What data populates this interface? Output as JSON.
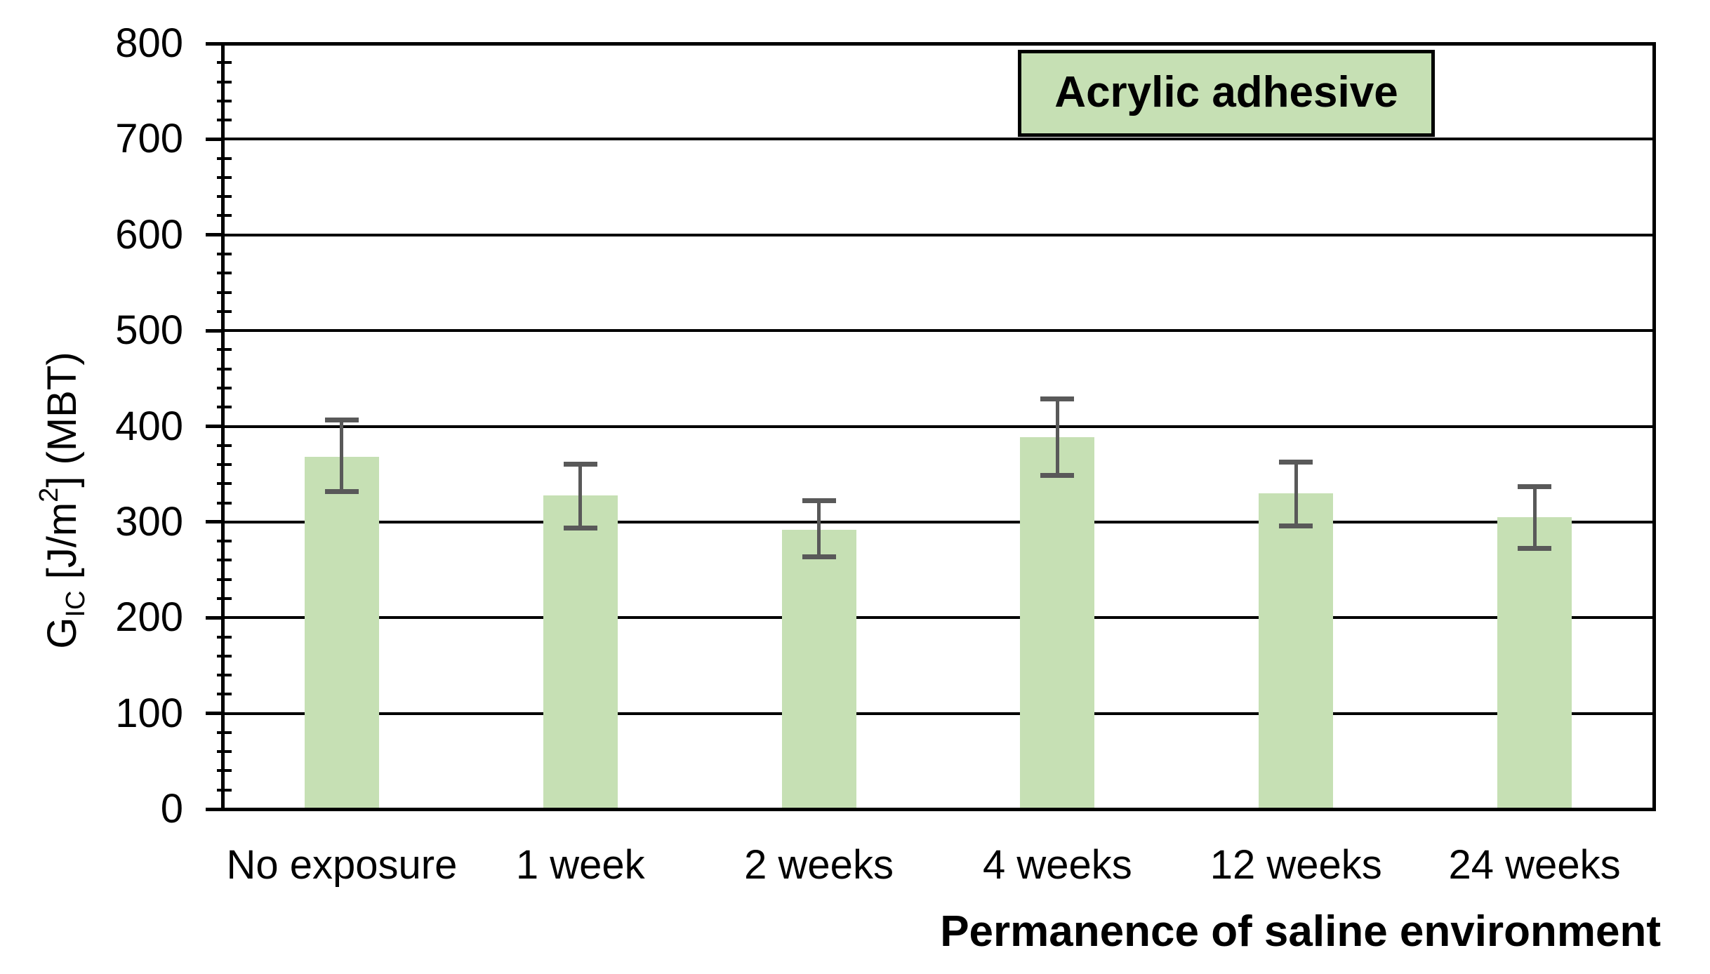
{
  "chart_data": {
    "type": "bar",
    "legend_label": "Acrylic adhesive",
    "legend_position": "top-right-inside",
    "xlabel": "Permanence of saline environment",
    "ylabel": {
      "main": "G",
      "subscript": "IC",
      "unit_prefix": " [J/m",
      "superscript": "2",
      "unit_suffix": "] (MBT)"
    },
    "categories": [
      "No exposure",
      "1 week",
      "2 weeks",
      "4 weeks",
      "12 weeks",
      "24 weeks"
    ],
    "values": [
      368,
      328,
      292,
      389,
      330,
      305
    ],
    "error_upper": [
      407,
      361,
      323,
      429,
      363,
      337
    ],
    "error_lower": [
      332,
      294,
      264,
      349,
      296,
      273
    ],
    "ylim": [
      0,
      800
    ],
    "yticks": [
      0,
      100,
      200,
      300,
      400,
      500,
      600,
      700,
      800
    ],
    "ytick_interval": 100,
    "minor_tick_interval": 20,
    "grid": true,
    "colors": {
      "bar_fill": "#c6e0b4",
      "legend_fill": "#c6e0b4",
      "error_bar": "#595959",
      "axis_and_grid": "#000000",
      "text": "#000000",
      "background": "#ffffff"
    }
  }
}
